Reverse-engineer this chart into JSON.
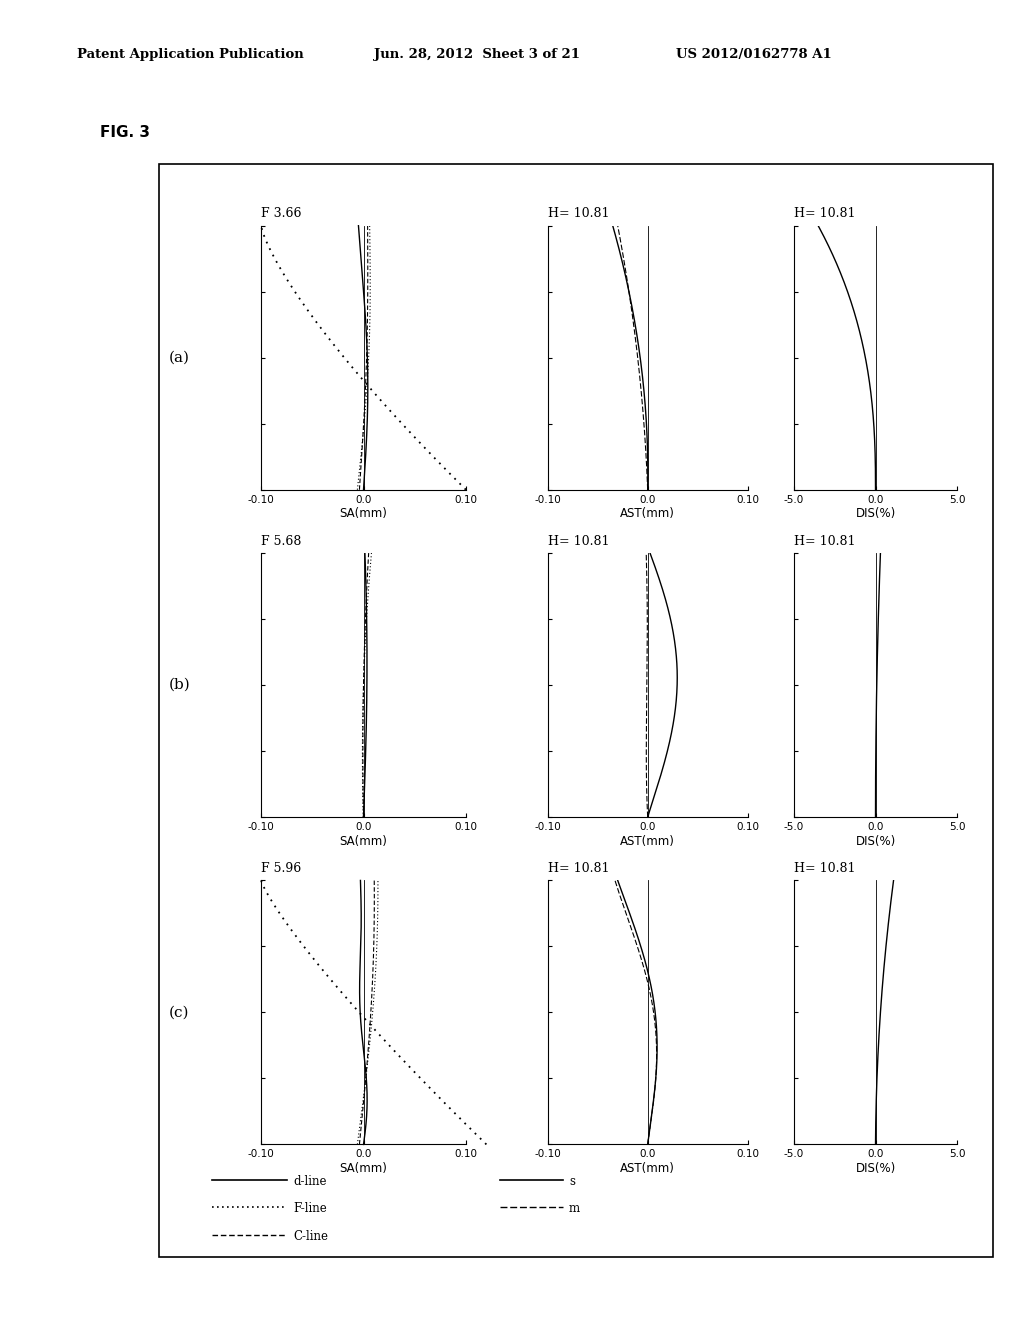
{
  "title_left": "Patent Application Publication",
  "title_mid": "Jun. 28, 2012  Sheet 3 of 21",
  "title_right": "US 2012/0162778 A1",
  "fig_label": "FIG. 3",
  "rows": [
    {
      "label": "(a)",
      "sa_title": "F 3.66",
      "ast_title": "H= 10.81",
      "dis_title": "H= 10.81"
    },
    {
      "label": "(b)",
      "sa_title": "F 5.68",
      "ast_title": "H= 10.81",
      "dis_title": "H= 10.81"
    },
    {
      "label": "(c)",
      "sa_title": "F 5.96",
      "ast_title": "H= 10.81",
      "dis_title": "H= 10.81"
    }
  ],
  "sa_xlim": [
    -0.1,
    0.1
  ],
  "ast_xlim": [
    -0.1,
    0.1
  ],
  "dis_xlim": [
    -5.0,
    5.0
  ],
  "ylim": [
    0.0,
    1.0
  ],
  "sa_xticks": [
    -0.1,
    0.0,
    0.1
  ],
  "ast_xticks": [
    -0.1,
    0.0,
    0.1
  ],
  "dis_xticks": [
    -5.0,
    0.0,
    5.0
  ],
  "yticks": [
    0.0,
    0.25,
    0.5,
    0.75,
    1.0
  ],
  "sa_xlabel": "SA(mm)",
  "ast_xlabel": "AST(mm)",
  "dis_xlabel": "DIS(%)",
  "legend_sa": [
    "d-line",
    "F-line",
    "C-line"
  ],
  "legend_ast": [
    "s",
    "m"
  ],
  "background": "#ffffff"
}
